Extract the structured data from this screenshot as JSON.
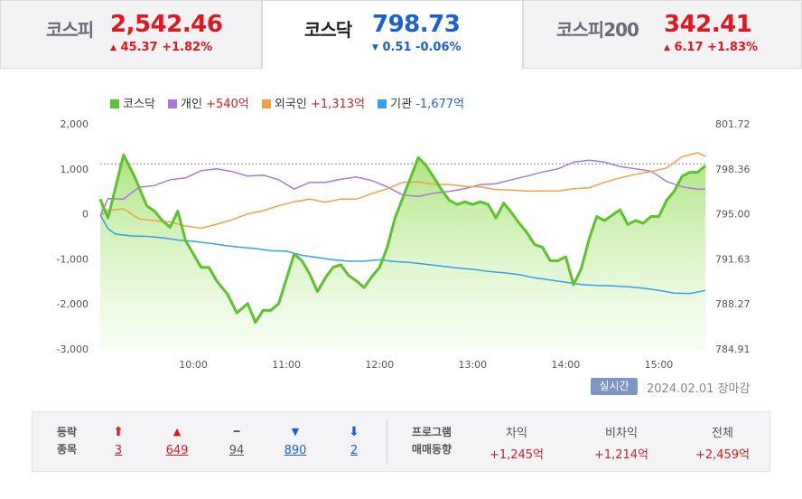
{
  "tabs": [
    {
      "name": "코스피",
      "value": "2,542.46",
      "arrow": "▲",
      "change": "45.37 +1.82%",
      "direction": "up"
    },
    {
      "name": "코스닥",
      "value": "798.73",
      "arrow": "▼",
      "change": "0.51 -0.06%",
      "direction": "down"
    },
    {
      "name": "코스피200",
      "value": "342.41",
      "arrow": "▲",
      "change": "6.17 +1.83%",
      "direction": "up"
    }
  ],
  "legend": [
    {
      "name": "코스닥",
      "value": "",
      "color": "#5dc22e"
    },
    {
      "name": "개인",
      "value": "+540억",
      "color": "#a57ad8",
      "value_class": "red"
    },
    {
      "name": "외국인",
      "value": "+1,313억",
      "color": "#f2a048",
      "value_class": "red"
    },
    {
      "name": "기관",
      "value": "-1,677억",
      "color": "#3b9ee8",
      "value_class": "blue"
    }
  ],
  "chart_data": {
    "type": "line",
    "x_label_times": [
      "10:00",
      "11:00",
      "12:00",
      "13:00",
      "14:00",
      "15:00"
    ],
    "left_axis": {
      "ticks": [
        "2,000",
        "1,000",
        "0",
        "-1,000",
        "-2,000",
        "-3,000"
      ],
      "ylim": [
        -3000,
        2000
      ],
      "unit": "억"
    },
    "right_axis": {
      "ticks": [
        "801.72",
        "798.36",
        "795.00",
        "791.63",
        "788.27",
        "784.91"
      ],
      "ylim": [
        784.91,
        801.72
      ]
    },
    "reference_level": 798.73,
    "x_range": [
      "09:00",
      "15:30"
    ],
    "series": [
      {
        "name": "코스닥",
        "type": "area",
        "axis": "right",
        "color": "#5dc22e",
        "x": [
          "09:00",
          "09:05",
          "09:15",
          "09:22",
          "09:30",
          "09:35",
          "09:40",
          "09:45",
          "09:50",
          "09:55",
          "10:05",
          "10:10",
          "10:15",
          "10:22",
          "10:28",
          "10:35",
          "10:40",
          "10:45",
          "10:50",
          "10:55",
          "11:05",
          "11:10",
          "11:15",
          "11:20",
          "11:25",
          "11:30",
          "11:35",
          "11:40",
          "11:45",
          "11:50",
          "11:55",
          "12:00",
          "12:05",
          "12:10",
          "12:20",
          "12:25",
          "12:30",
          "12:35",
          "12:40",
          "12:45",
          "12:50",
          "12:55",
          "13:00",
          "13:05",
          "13:10",
          "13:15",
          "13:20",
          "13:25",
          "13:30",
          "13:35",
          "13:40",
          "13:45",
          "13:50",
          "13:55",
          "14:00",
          "14:05",
          "14:10",
          "14:15",
          "14:20",
          "14:25",
          "14:30",
          "14:35",
          "14:40",
          "14:45",
          "14:50",
          "14:55",
          "15:00",
          "15:05",
          "15:10",
          "15:15",
          "15:20",
          "15:25",
          "15:30"
        ],
        "values": [
          796.1,
          794.7,
          799.4,
          797.8,
          795.6,
          795.2,
          794.5,
          794.0,
          795.2,
          793.0,
          791.0,
          791.0,
          790.0,
          789.0,
          787.6,
          788.3,
          786.9,
          787.8,
          787.8,
          788.3,
          792.0,
          791.5,
          790.5,
          789.2,
          790.2,
          791.0,
          791.2,
          790.4,
          790.0,
          789.5,
          790.3,
          791.0,
          792.5,
          794.7,
          797.7,
          799.2,
          798.6,
          797.7,
          796.8,
          796.0,
          795.7,
          795.9,
          795.7,
          795.9,
          795.7,
          794.7,
          795.8,
          795.1,
          794.3,
          793.6,
          792.7,
          792.5,
          791.5,
          791.5,
          791.8,
          789.7,
          790.9,
          793.1,
          794.8,
          794.5,
          794.9,
          795.3,
          794.2,
          794.5,
          794.3,
          794.8,
          794.8,
          796.0,
          796.7,
          797.8,
          798.1,
          798.1,
          798.6
        ]
      },
      {
        "name": "개인",
        "type": "line",
        "axis": "left",
        "color": "#a57ad8",
        "x": [
          "09:00",
          "09:05",
          "09:15",
          "09:25",
          "09:35",
          "09:45",
          "09:55",
          "10:05",
          "10:15",
          "10:25",
          "10:35",
          "10:45",
          "10:55",
          "11:05",
          "11:15",
          "11:25",
          "11:35",
          "11:45",
          "11:55",
          "12:05",
          "12:15",
          "12:25",
          "12:35",
          "12:45",
          "12:55",
          "13:05",
          "13:15",
          "13:25",
          "13:35",
          "13:45",
          "13:55",
          "14:05",
          "14:15",
          "14:25",
          "14:35",
          "14:45",
          "14:55",
          "15:05",
          "15:15",
          "15:25",
          "15:30"
        ],
        "values": [
          -50,
          340,
          330,
          590,
          630,
          760,
          800,
          960,
          1000,
          940,
          840,
          860,
          760,
          550,
          700,
          700,
          770,
          820,
          740,
          600,
          420,
          390,
          460,
          500,
          560,
          650,
          670,
          760,
          840,
          930,
          1000,
          1150,
          1190,
          1150,
          1050,
          1000,
          950,
          720,
          600,
          550,
          550
        ]
      },
      {
        "name": "외국인",
        "type": "line",
        "axis": "left",
        "color": "#f2a048",
        "x": [
          "09:00",
          "09:05",
          "09:15",
          "09:25",
          "09:35",
          "09:45",
          "09:55",
          "10:05",
          "10:15",
          "10:25",
          "10:35",
          "10:45",
          "10:55",
          "11:05",
          "11:15",
          "11:25",
          "11:35",
          "11:45",
          "11:55",
          "12:05",
          "12:15",
          "12:25",
          "12:35",
          "12:45",
          "12:55",
          "13:05",
          "13:15",
          "13:25",
          "13:35",
          "13:45",
          "13:55",
          "14:05",
          "14:15",
          "14:25",
          "14:35",
          "14:45",
          "14:55",
          "15:05",
          "15:15",
          "15:25",
          "15:30"
        ],
        "values": [
          -50,
          80,
          110,
          -110,
          -150,
          -180,
          -270,
          -320,
          -230,
          -130,
          0,
          70,
          180,
          270,
          330,
          260,
          330,
          330,
          450,
          560,
          700,
          710,
          660,
          650,
          610,
          600,
          540,
          530,
          510,
          510,
          510,
          560,
          580,
          700,
          800,
          880,
          940,
          1020,
          1270,
          1360,
          1280
        ]
      },
      {
        "name": "기관",
        "type": "line",
        "axis": "left",
        "color": "#3b9ee8",
        "x": [
          "09:00",
          "09:05",
          "09:10",
          "09:20",
          "09:30",
          "09:40",
          "09:50",
          "10:00",
          "10:10",
          "10:20",
          "10:30",
          "10:40",
          "10:50",
          "11:00",
          "11:10",
          "11:20",
          "11:30",
          "11:40",
          "11:50",
          "12:00",
          "12:10",
          "12:20",
          "12:30",
          "12:40",
          "12:50",
          "13:00",
          "13:10",
          "13:20",
          "13:30",
          "13:40",
          "13:50",
          "14:00",
          "14:10",
          "14:20",
          "14:30",
          "14:40",
          "14:50",
          "15:00",
          "15:10",
          "15:20",
          "15:30"
        ],
        "values": [
          -20,
          -330,
          -450,
          -490,
          -500,
          -530,
          -580,
          -610,
          -650,
          -700,
          -740,
          -770,
          -820,
          -830,
          -920,
          -970,
          -1020,
          -1050,
          -1050,
          -1020,
          -1060,
          -1080,
          -1120,
          -1160,
          -1200,
          -1230,
          -1280,
          -1310,
          -1350,
          -1420,
          -1470,
          -1520,
          -1570,
          -1590,
          -1600,
          -1620,
          -1650,
          -1700,
          -1760,
          -1770,
          -1700
        ]
      }
    ]
  },
  "realtime": {
    "badge": "실시간",
    "date": "2024.02.01 장마감"
  },
  "breadth": {
    "label_line1": "등락",
    "label_line2": "종목",
    "items": [
      {
        "name": "upper-limit",
        "symbol": "⬆",
        "count": "3",
        "color": "#e0171f"
      },
      {
        "name": "rise",
        "symbol": "▲",
        "count": "649",
        "color": "#e0171f"
      },
      {
        "name": "unchanged",
        "symbol": "━",
        "count": "94",
        "color": "#555555"
      },
      {
        "name": "fall",
        "symbol": "▼",
        "count": "890",
        "color": "#1b5fd8"
      },
      {
        "name": "lower-limit",
        "symbol": "⬇",
        "count": "2",
        "color": "#1b5fd8"
      }
    ]
  },
  "program": {
    "label_line1": "프로그램",
    "label_line2": "매매동향",
    "items": [
      {
        "header": "차익",
        "value": "+1,245억"
      },
      {
        "header": "비차익",
        "value": "+1,214억"
      },
      {
        "header": "전체",
        "value": "+2,459억"
      }
    ]
  }
}
